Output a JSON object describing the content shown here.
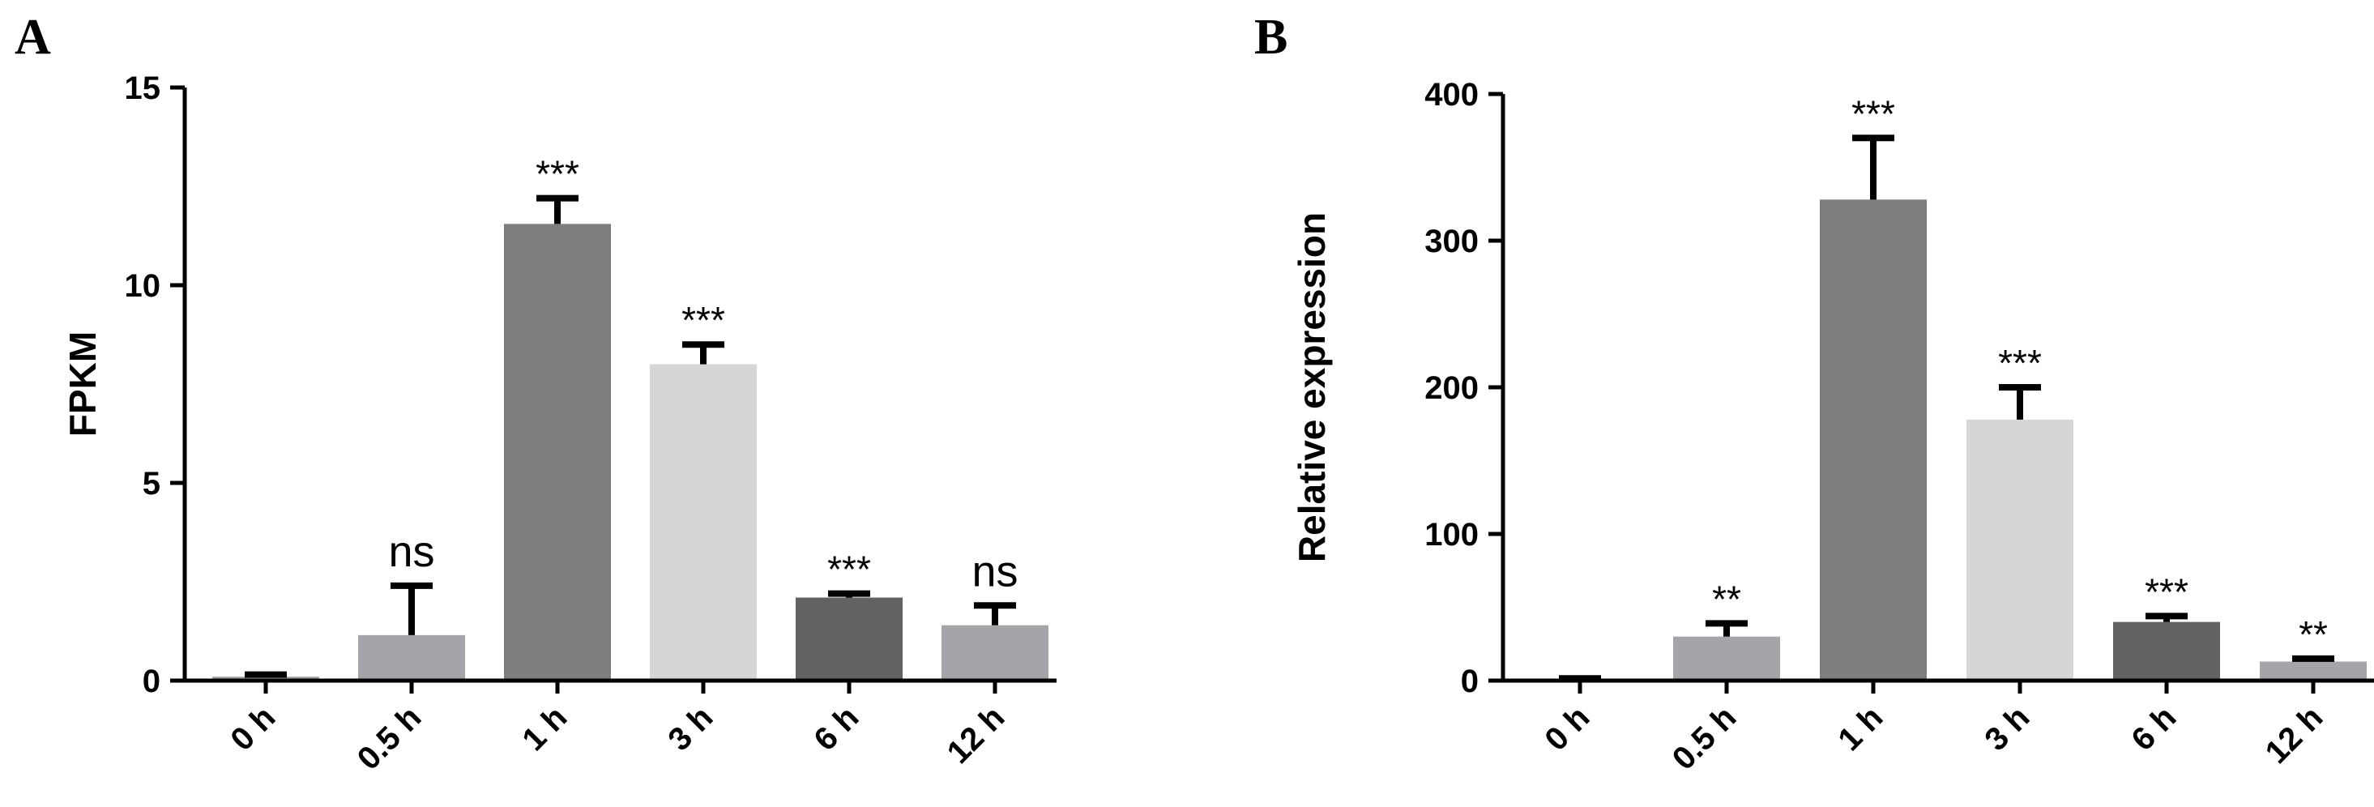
{
  "chart_data": [
    {
      "type": "bar",
      "panel": "A",
      "title": "",
      "xlabel": "",
      "ylabel": "FPKM",
      "ylim": [
        0,
        15
      ],
      "yticks": [
        0,
        5,
        10,
        15
      ],
      "categories": [
        "0 h",
        "0.5 h",
        "1 h",
        "3 h",
        "6 h",
        "12 h"
      ],
      "values": [
        0.1,
        1.15,
        11.55,
        8.0,
        2.1,
        1.4
      ],
      "errors": [
        0.05,
        1.25,
        0.65,
        0.5,
        0.1,
        0.5
      ],
      "significance": [
        "",
        "ns",
        "***",
        "***",
        "***",
        "ns"
      ],
      "colors": [
        "#a5a5a9",
        "#a5a5a9",
        "#7e7e7e",
        "#d6d6d6",
        "#626262",
        "#a5a5a9"
      ],
      "grid": false,
      "legend": "none"
    },
    {
      "type": "bar",
      "panel": "B",
      "title": "",
      "xlabel": "",
      "ylabel": "Relative expression",
      "ylim": [
        0,
        400
      ],
      "yticks": [
        0,
        100,
        200,
        300,
        400
      ],
      "categories": [
        "0 h",
        "0.5 h",
        "1 h",
        "3 h",
        "6 h",
        "12 h"
      ],
      "values": [
        1,
        30,
        328,
        178,
        40,
        13
      ],
      "errors": [
        0.5,
        9,
        42,
        22,
        4,
        2
      ],
      "significance": [
        "",
        "**",
        "***",
        "***",
        "***",
        "**"
      ],
      "colors": [
        "#a5a5a9",
        "#a5a5a9",
        "#7e7e7e",
        "#d6d6d6",
        "#626262",
        "#a5a5a9"
      ],
      "grid": false,
      "legend": "none"
    }
  ]
}
